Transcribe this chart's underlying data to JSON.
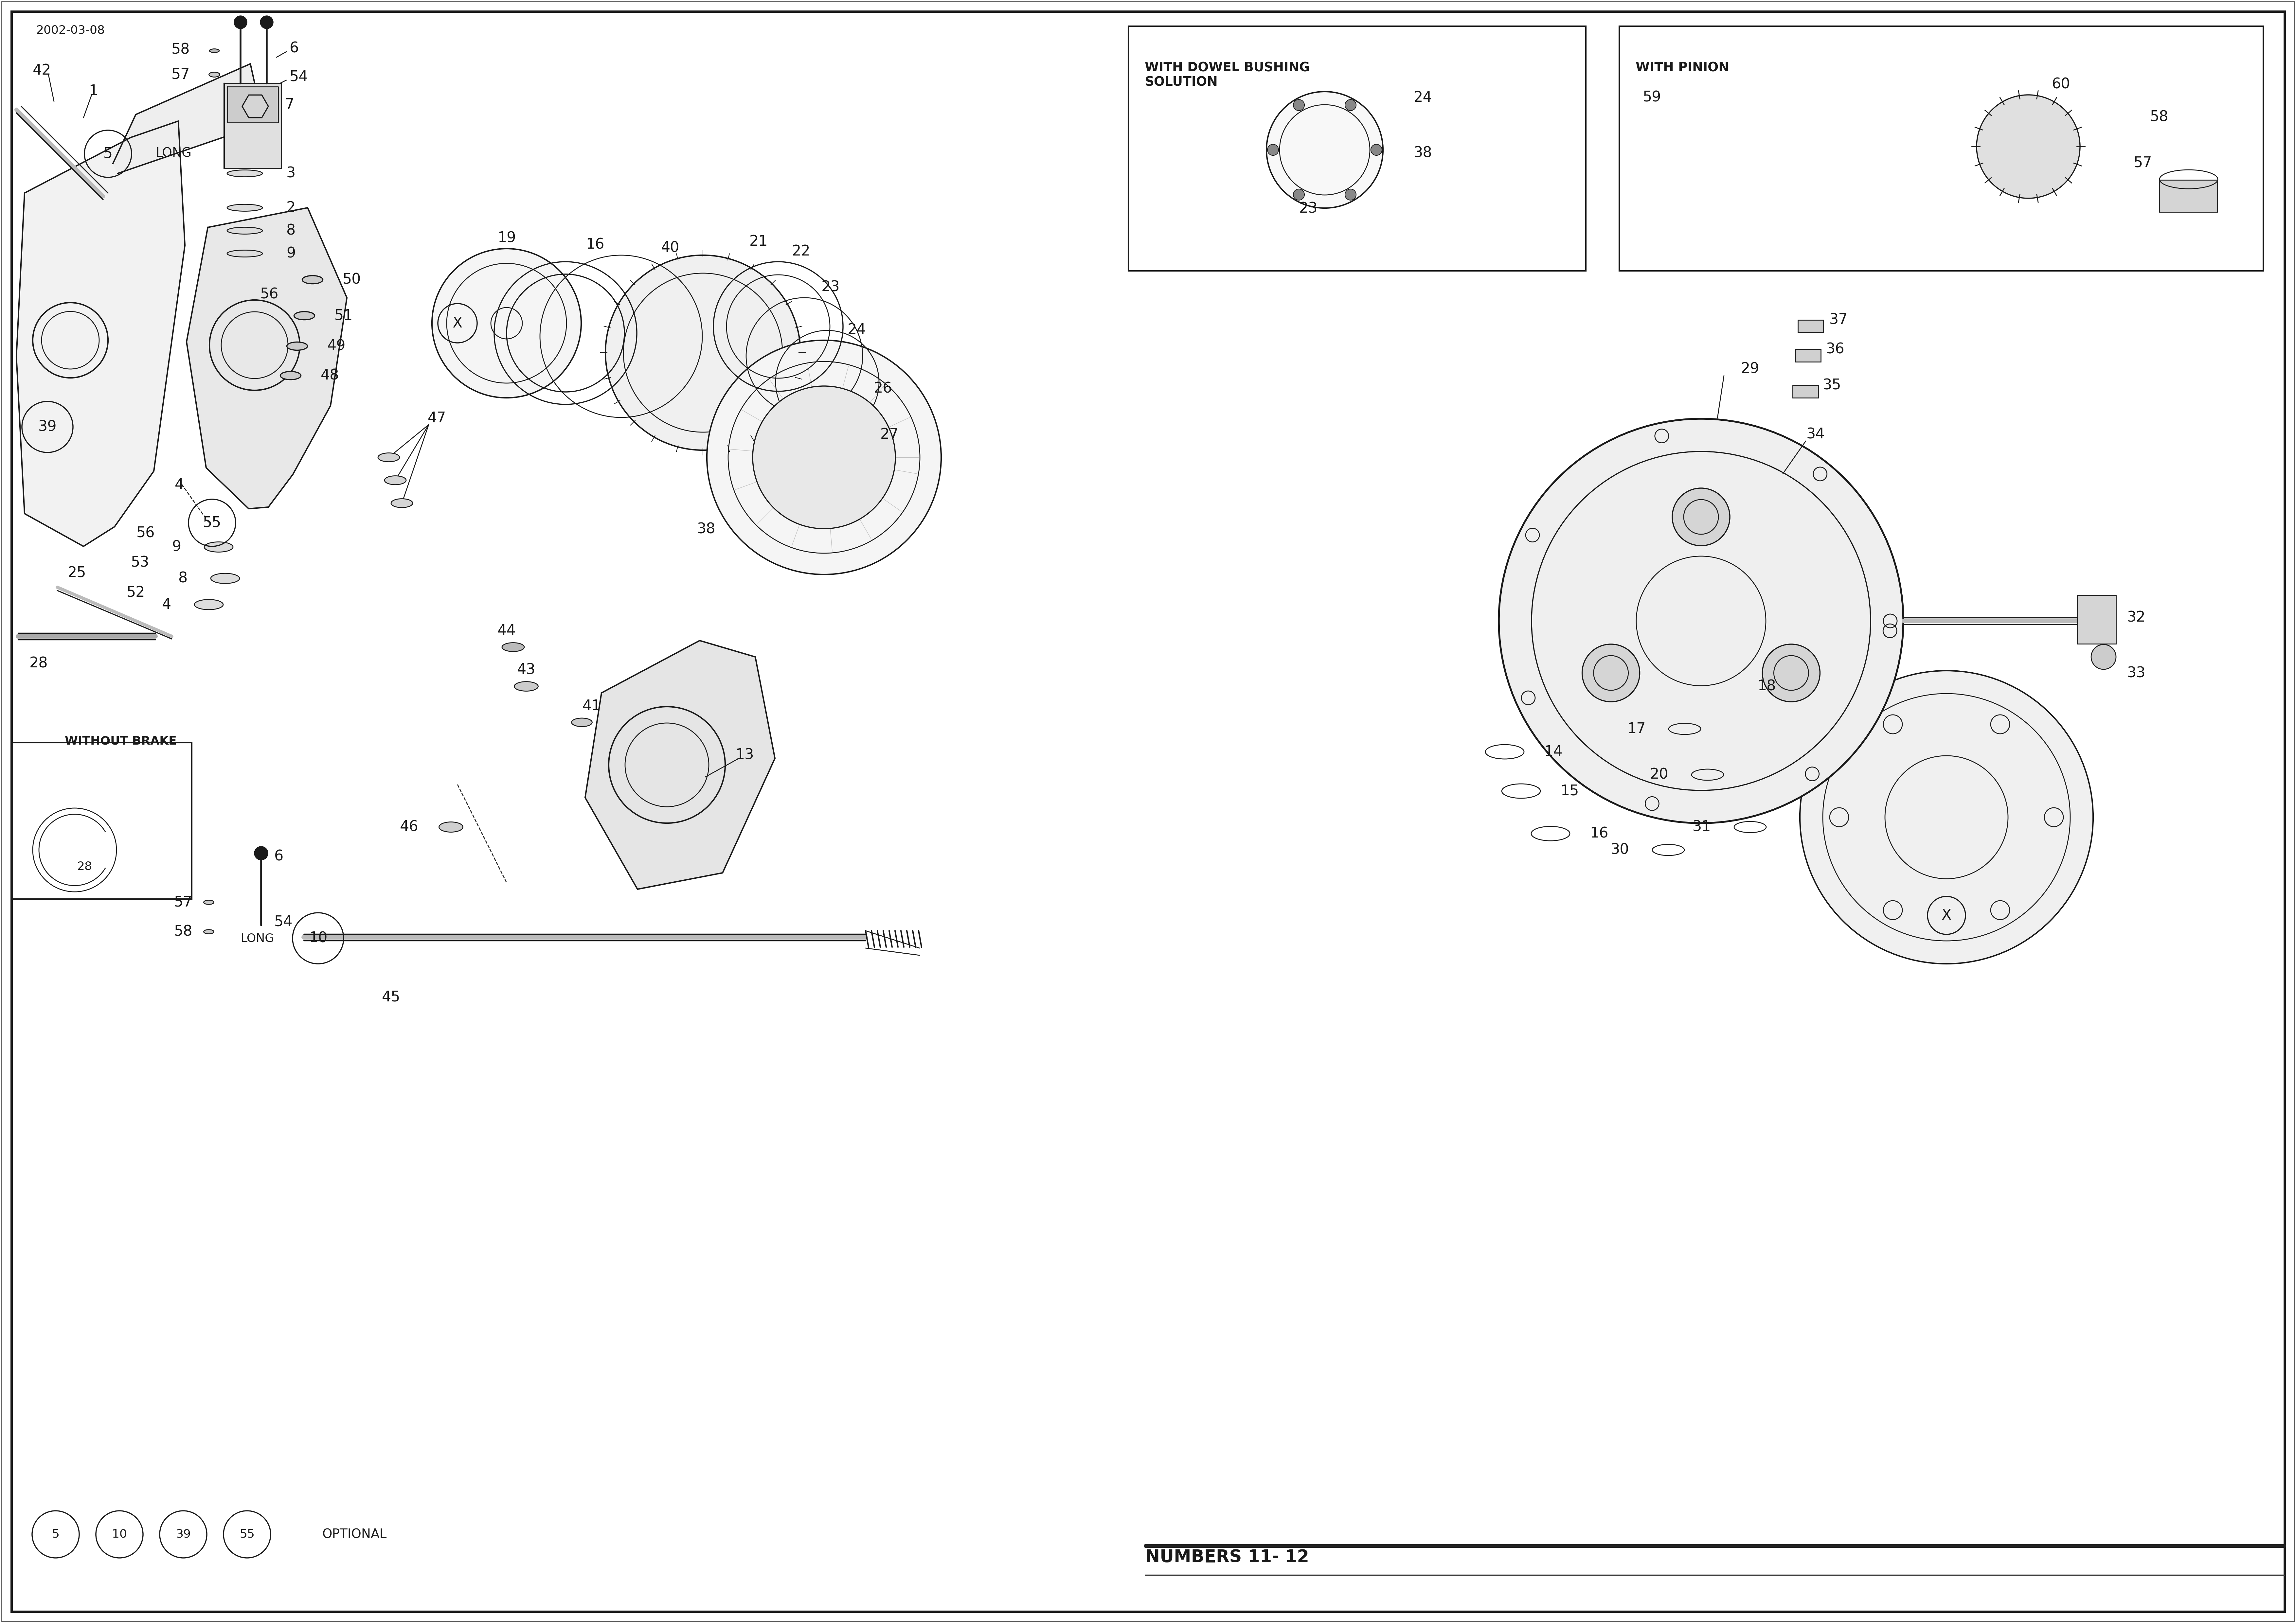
{
  "fig_width": 70.16,
  "fig_height": 49.61,
  "dpi": 100,
  "bg_color": "#ffffff",
  "line_color": "#1a1a1a",
  "text_color": "#1a1a1a",
  "light_gray": "#ebebeb",
  "mid_gray": "#d0d0d0",
  "dark_gray": "#888888",
  "date_text": "2002-03-08",
  "bottom_text": "NUMBERS 11- 12",
  "optional_text": "OPTIONAL",
  "long_text": "LONG",
  "without_brake_text": "WITHOUT BRAKE",
  "with_dowel_text": "WITH DOWEL BUSHING\nSOLUTION",
  "with_pinion_text": "WITH PINION",
  "label_fontsize": 32,
  "small_fontsize": 26,
  "title_fontsize": 38
}
